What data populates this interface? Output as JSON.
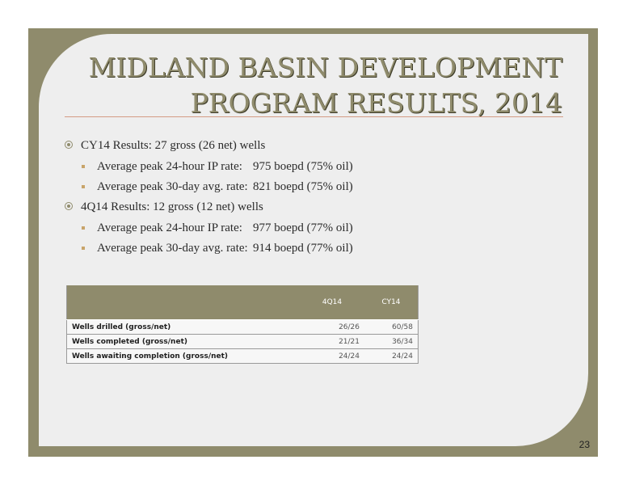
{
  "slide": {
    "title_line1": "MIDLAND BASIN DEVELOPMENT",
    "title_line2": "PROGRAM RESULTS, 2014",
    "page_number": "23"
  },
  "bullets": [
    {
      "text": "CY14 Results: 27 gross (26 net) wells",
      "items": [
        {
          "label": "Average peak 24-hour IP rate:",
          "value": "975 boepd (75% oil)"
        },
        {
          "label": "Average peak 30-day avg. rate:",
          "value": "821 boepd (75% oil)"
        }
      ]
    },
    {
      "text": "4Q14 Results: 12 gross (12 net) wells",
      "items": [
        {
          "label": "Average peak 24-hour IP rate:",
          "value": "977 boepd (77% oil)"
        },
        {
          "label": "Average peak 30-day avg. rate:",
          "value": "914 boepd (77% oil)"
        }
      ]
    }
  ],
  "table": {
    "headers": [
      "",
      "4Q14",
      "CY14"
    ],
    "rows": [
      [
        "Wells drilled (gross/net)",
        "26/26",
        "60/58"
      ],
      [
        "Wells completed (gross/net)",
        "21/21",
        "36/34"
      ],
      [
        "Wells awaiting completion (gross/net)",
        "24/24",
        "24/24"
      ]
    ]
  },
  "colors": {
    "accent": "#8f8b6c",
    "rule": "#d49b84",
    "bullet_square": "#c8a46a"
  }
}
